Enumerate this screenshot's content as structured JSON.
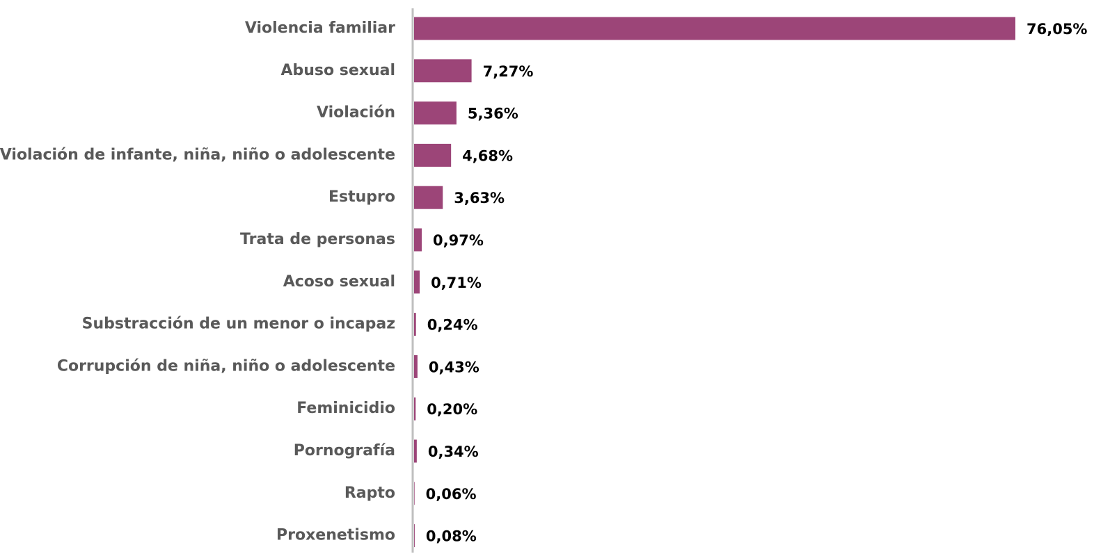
{
  "chart_data": {
    "type": "bar",
    "orientation": "horizontal",
    "categories": [
      "Violencia familiar",
      "Abuso sexual",
      "Violación",
      "Violación de infante, niña, niño o adolescente",
      "Estupro",
      "Trata de personas",
      "Acoso sexual",
      "Substracción de un menor o incapaz",
      "Corrupción de niña, niño o adolescente",
      "Feminicidio",
      "Pornografía",
      "Rapto",
      "Proxenetismo"
    ],
    "values": [
      76.05,
      7.27,
      5.36,
      4.68,
      3.63,
      0.97,
      0.71,
      0.24,
      0.43,
      0.2,
      0.34,
      0.06,
      0.08
    ],
    "value_labels": [
      "76,05%",
      "7,27%",
      "5,36%",
      "4,68%",
      "3,63%",
      "0,97%",
      "0,71%",
      "0,24%",
      "0,43%",
      "0,20%",
      "0,34%",
      "0,06%",
      "0,08%"
    ],
    "color": "#9c4578"
  }
}
